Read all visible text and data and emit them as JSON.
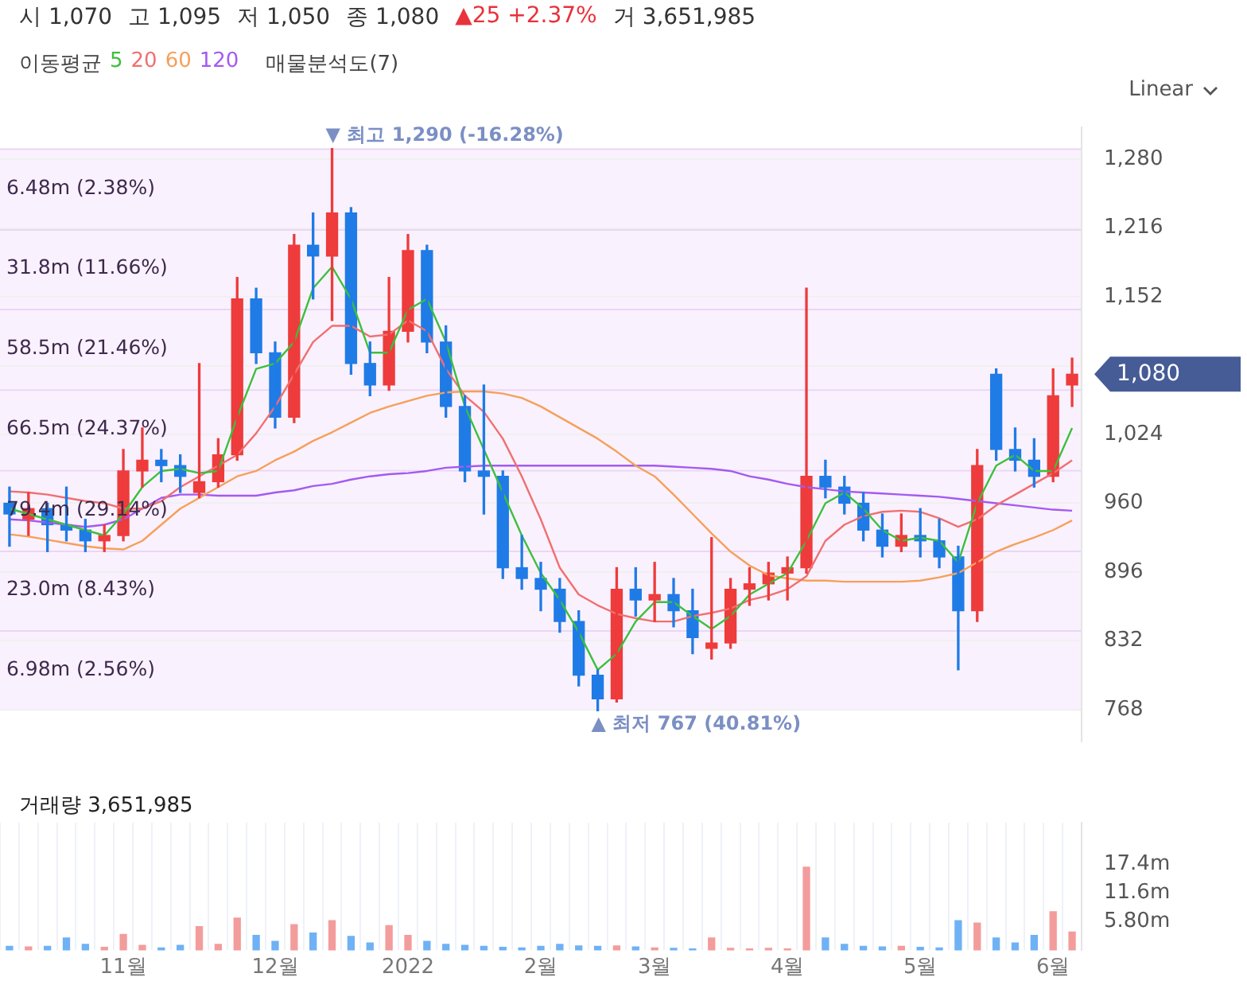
{
  "chart_data": [
    {
      "type": "candlestick",
      "legend": "top left",
      "legend_title": "이동평균",
      "grid": "y",
      "tick_labels": "y",
      "categories": [
        null,
        null,
        null,
        null,
        null,
        null,
        null,
        null,
        null,
        null,
        null,
        null,
        null,
        null,
        null,
        null,
        null,
        null,
        null,
        null,
        null,
        null,
        null,
        null,
        null,
        null,
        null,
        null,
        null,
        null,
        null,
        null,
        null,
        null,
        null,
        null,
        null,
        null,
        null,
        null,
        null,
        null,
        null,
        null,
        null,
        null,
        null,
        null,
        null,
        null,
        null,
        null,
        null,
        null,
        null,
        null,
        null
      ],
      "ohlc": [
        [
          960,
          975,
          920,
          950
        ],
        [
          945,
          970,
          930,
          955
        ],
        [
          955,
          960,
          915,
          940
        ],
        [
          940,
          975,
          925,
          935
        ],
        [
          935,
          945,
          915,
          925
        ],
        [
          925,
          940,
          915,
          930
        ],
        [
          930,
          1010,
          925,
          990
        ],
        [
          990,
          1030,
          975,
          1000
        ],
        [
          1000,
          1010,
          980,
          995
        ],
        [
          995,
          1005,
          970,
          985
        ],
        [
          970,
          1090,
          965,
          980
        ],
        [
          980,
          1020,
          975,
          1005
        ],
        [
          1005,
          1170,
          1000,
          1150
        ],
        [
          1150,
          1160,
          1090,
          1100
        ],
        [
          1100,
          1110,
          1030,
          1040
        ],
        [
          1040,
          1210,
          1035,
          1200
        ],
        [
          1200,
          1230,
          1150,
          1190
        ],
        [
          1190,
          1290,
          1130,
          1230
        ],
        [
          1230,
          1235,
          1080,
          1090
        ],
        [
          1090,
          1110,
          1060,
          1070
        ],
        [
          1070,
          1170,
          1065,
          1120
        ],
        [
          1120,
          1210,
          1110,
          1195
        ],
        [
          1195,
          1200,
          1100,
          1110
        ],
        [
          1110,
          1125,
          1040,
          1050
        ],
        [
          1050,
          1060,
          980,
          990
        ],
        [
          990,
          1070,
          950,
          985
        ],
        [
          985,
          990,
          890,
          900
        ],
        [
          900,
          930,
          880,
          890
        ],
        [
          890,
          905,
          860,
          880
        ],
        [
          880,
          890,
          840,
          850
        ],
        [
          850,
          860,
          790,
          800
        ],
        [
          800,
          805,
          767,
          778
        ],
        [
          778,
          900,
          775,
          880
        ],
        [
          880,
          900,
          855,
          870
        ],
        [
          870,
          905,
          850,
          875
        ],
        [
          875,
          890,
          845,
          860
        ],
        [
          860,
          880,
          820,
          835
        ],
        [
          825,
          928,
          815,
          830
        ],
        [
          830,
          890,
          825,
          880
        ],
        [
          880,
          900,
          865,
          885
        ],
        [
          885,
          905,
          870,
          895
        ],
        [
          895,
          910,
          870,
          900
        ],
        [
          900,
          1160,
          895,
          985
        ],
        [
          985,
          1000,
          965,
          975
        ],
        [
          975,
          985,
          950,
          960
        ],
        [
          960,
          970,
          925,
          935
        ],
        [
          935,
          950,
          910,
          920
        ],
        [
          920,
          950,
          915,
          930
        ],
        [
          930,
          955,
          910,
          925
        ],
        [
          925,
          945,
          900,
          910
        ],
        [
          910,
          920,
          805,
          860
        ],
        [
          860,
          1010,
          850,
          995
        ],
        [
          1080,
          1085,
          1000,
          1010
        ],
        [
          1010,
          1030,
          990,
          1000
        ],
        [
          1000,
          1020,
          975,
          985
        ],
        [
          985,
          1085,
          980,
          1060
        ],
        [
          1070,
          1095,
          1050,
          1080
        ]
      ],
      "colors": [
        "#1f7be6",
        "#ee3b3b",
        "#1f7be6",
        "#1f7be6",
        "#1f7be6",
        "#ee3b3b",
        "#ee3b3b",
        "#ee3b3b",
        "#1f7be6",
        "#1f7be6",
        "#ee3b3b",
        "#ee3b3b",
        "#ee3b3b",
        "#1f7be6",
        "#1f7be6",
        "#ee3b3b",
        "#1f7be6",
        "#ee3b3b",
        "#1f7be6",
        "#1f7be6",
        "#ee3b3b",
        "#ee3b3b",
        "#1f7be6",
        "#1f7be6",
        "#1f7be6",
        "#1f7be6",
        "#1f7be6",
        "#1f7be6",
        "#1f7be6",
        "#1f7be6",
        "#1f7be6",
        "#1f7be6",
        "#ee3b3b",
        "#1f7be6",
        "#ee3b3b",
        "#1f7be6",
        "#1f7be6",
        "#ee3b3b",
        "#ee3b3b",
        "#ee3b3b",
        "#ee3b3b",
        "#ee3b3b",
        "#ee3b3b",
        "#1f7be6",
        "#1f7be6",
        "#1f7be6",
        "#1f7be6",
        "#ee3b3b",
        "#1f7be6",
        "#1f7be6",
        "#1f7be6",
        "#ee3b3b",
        "#1f7be6",
        "#1f7be6",
        "#1f7be6",
        "#ee3b3b",
        "#ee3b3b"
      ],
      "series": [
        {
          "type": "line",
          "name": "5",
          "color": "#3cc03c",
          "values": [
            955,
            950,
            945,
            940,
            935,
            930,
            950,
            975,
            990,
            992,
            988,
            990,
            1040,
            1085,
            1090,
            1110,
            1160,
            1180,
            1150,
            1100,
            1100,
            1140,
            1150,
            1110,
            1050,
            1010,
            970,
            930,
            895,
            870,
            840,
            805,
            820,
            850,
            868,
            868,
            855,
            843,
            855,
            875,
            885,
            895,
            925,
            960,
            970,
            955,
            935,
            925,
            928,
            925,
            905,
            960,
            995,
            1005,
            990,
            990,
            1030
          ]
        },
        {
          "type": "line",
          "name": "20",
          "color": "#f07070",
          "values": [
            971,
            970,
            968,
            965,
            962,
            960,
            955,
            955,
            962,
            975,
            985,
            995,
            1005,
            1025,
            1050,
            1080,
            1110,
            1125,
            1125,
            1115,
            1117,
            1130,
            1120,
            1085,
            1060,
            1045,
            1020,
            985,
            945,
            900,
            875,
            865,
            857,
            853,
            850,
            850,
            855,
            858,
            862,
            870,
            874,
            880,
            892,
            925,
            940,
            948,
            952,
            953,
            952,
            946,
            938,
            945,
            958,
            968,
            978,
            988,
            1000
          ]
        },
        {
          "type": "line",
          "name": "60",
          "color": "#f5a05a",
          "values": [
            931,
            929,
            926,
            923,
            920,
            918,
            917,
            925,
            940,
            955,
            965,
            975,
            985,
            990,
            1000,
            1008,
            1018,
            1026,
            1035,
            1044,
            1050,
            1055,
            1060,
            1063,
            1064,
            1064,
            1062,
            1058,
            1050,
            1040,
            1030,
            1020,
            1008,
            995,
            985,
            968,
            950,
            932,
            915,
            902,
            893,
            890,
            888,
            888,
            887,
            887,
            887,
            887,
            888,
            891,
            895,
            905,
            915,
            922,
            928,
            935,
            944
          ]
        },
        {
          "type": "line",
          "name": "120",
          "color": "#a35af2",
          "values": [
            945,
            944,
            942,
            940,
            938,
            940,
            945,
            955,
            965,
            968,
            968,
            967,
            967,
            967,
            970,
            972,
            976,
            978,
            982,
            985,
            987,
            988,
            990,
            993,
            994,
            995,
            995,
            995,
            995,
            995,
            995,
            995,
            995,
            995,
            995,
            994,
            993,
            992,
            990,
            985,
            982,
            978,
            975,
            973,
            971,
            970,
            969,
            968,
            967,
            966,
            964,
            962,
            960,
            958,
            956,
            954,
            953
          ]
        }
      ],
      "ylim": [
        738,
        1310
      ],
      "yticks": [
        {
          "value": 768,
          "label": "768"
        },
        {
          "value": 832,
          "label": "832"
        },
        {
          "value": 896,
          "label": "896"
        },
        {
          "value": 960,
          "label": "960"
        },
        {
          "value": 1024,
          "label": "1,024"
        },
        {
          "value": 1088,
          "label": null
        },
        {
          "value": 1152,
          "label": "1,152"
        },
        {
          "value": 1216,
          "label": "1,216"
        },
        {
          "value": 1280,
          "label": "1,280"
        }
      ],
      "bands": [
        {
          "axis": "y",
          "from": 767,
          "to": 842,
          "label": "6.98m (2.56%)",
          "color": "#f8ecfd"
        },
        {
          "axis": "y",
          "from": 842,
          "to": 916,
          "label": "23.0m (8.43%)",
          "color": "#f8ecfd"
        },
        {
          "axis": "y",
          "from": 916,
          "to": 991,
          "label": "79.4m (29.14%)",
          "color": "#f8ecfd"
        },
        {
          "axis": "y",
          "from": 991,
          "to": 1066,
          "label": "66.5m (24.37%)",
          "color": "#f8ecfd"
        },
        {
          "axis": "y",
          "from": 1066,
          "to": 1141,
          "label": "58.5m (21.46%)",
          "color": "#f8ecfd"
        },
        {
          "axis": "y",
          "from": 1141,
          "to": 1215,
          "label": "31.8m (11.66%)",
          "color": "#f8ecfd"
        },
        {
          "axis": "y",
          "from": 1215,
          "to": 1290,
          "label": "6.48m (2.38%)",
          "color": "#f8ecfd"
        }
      ],
      "annotations": [
        "시 1,070",
        "고 1,095",
        "저 1,050",
        "종 1,080",
        "▲25 +2.37%",
        "거 3,651,985",
        "매물분석도(7)",
        "Linear",
        {
          "text": "▼ 최고 1,290 (-16.28%)",
          "y": 1290
        },
        {
          "text": "▲ 최저 767 (40.81%)",
          "y": 767
        },
        "1,080"
      ]
    },
    {
      "type": "bar",
      "title": "거래량 3,651,985",
      "grid": "x",
      "categories": [
        null,
        null,
        null,
        null,
        null,
        null,
        "11월",
        null,
        null,
        null,
        null,
        null,
        null,
        null,
        "12월",
        null,
        null,
        null,
        null,
        null,
        null,
        "2022",
        null,
        null,
        null,
        null,
        null,
        null,
        "2월",
        null,
        null,
        null,
        null,
        null,
        "3월",
        null,
        null,
        null,
        null,
        null,
        null,
        "4월",
        null,
        null,
        null,
        null,
        null,
        null,
        "5월",
        null,
        null,
        null,
        null,
        null,
        null,
        "6월",
        null
      ],
      "values": [
        0.8,
        0.7,
        0.8,
        2.5,
        1.2,
        0.6,
        3.2,
        1.0,
        0.5,
        1.0,
        4.8,
        1.2,
        6.5,
        3.0,
        1.8,
        5.2,
        3.5,
        6.0,
        2.8,
        1.5,
        5.0,
        3.0,
        1.8,
        1.2,
        1.0,
        0.8,
        0.6,
        0.5,
        0.8,
        1.2,
        0.9,
        0.8,
        0.9,
        0.7,
        0.5,
        0.4,
        0.3,
        2.5,
        0.4,
        0.3,
        0.4,
        0.3,
        16.8,
        2.5,
        1.2,
        0.8,
        0.7,
        0.8,
        0.6,
        0.5,
        6.0,
        5.5,
        2.5,
        1.5,
        3.0,
        7.8,
        3.7
      ],
      "colors": [
        "#6fb1f5",
        "#f39c9c",
        "#6fb1f5",
        "#6fb1f5",
        "#6fb1f5",
        "#f39c9c",
        "#f39c9c",
        "#f39c9c",
        "#6fb1f5",
        "#6fb1f5",
        "#f39c9c",
        "#f39c9c",
        "#f39c9c",
        "#6fb1f5",
        "#6fb1f5",
        "#f39c9c",
        "#6fb1f5",
        "#f39c9c",
        "#6fb1f5",
        "#6fb1f5",
        "#f39c9c",
        "#f39c9c",
        "#6fb1f5",
        "#6fb1f5",
        "#6fb1f5",
        "#6fb1f5",
        "#6fb1f5",
        "#6fb1f5",
        "#6fb1f5",
        "#6fb1f5",
        "#6fb1f5",
        "#6fb1f5",
        "#f39c9c",
        "#6fb1f5",
        "#f39c9c",
        "#6fb1f5",
        "#6fb1f5",
        "#f39c9c",
        "#f39c9c",
        "#f39c9c",
        "#f39c9c",
        "#f39c9c",
        "#f39c9c",
        "#6fb1f5",
        "#6fb1f5",
        "#6fb1f5",
        "#6fb1f5",
        "#f39c9c",
        "#6fb1f5",
        "#6fb1f5",
        "#6fb1f5",
        "#f39c9c",
        "#6fb1f5",
        "#6fb1f5",
        "#6fb1f5",
        "#f39c9c",
        "#f39c9c"
      ],
      "ylim": [
        0,
        25.8
      ],
      "yticks": [
        {
          "value": 5.8,
          "label": "5.80m"
        },
        {
          "value": 11.6,
          "label": "11.6m"
        },
        {
          "value": 17.4,
          "label": "17.4m"
        }
      ]
    }
  ]
}
